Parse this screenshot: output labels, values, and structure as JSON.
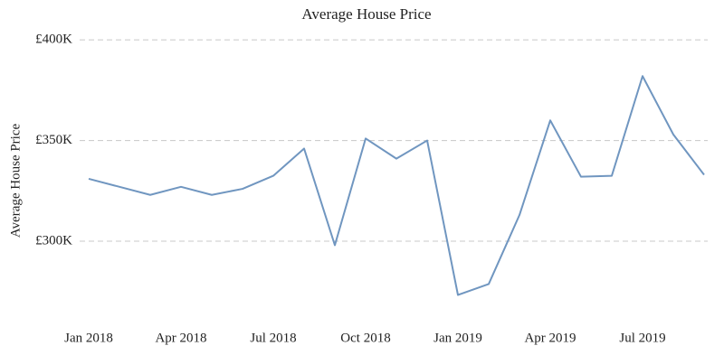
{
  "chart_data": {
    "type": "line",
    "title": "Average House Price",
    "y_label": "Average House Price",
    "x": [
      "2018-01",
      "2018-02",
      "2018-03",
      "2018-04",
      "2018-05",
      "2018-06",
      "2018-07",
      "2018-08",
      "2018-09",
      "2018-10",
      "2018-11",
      "2018-12",
      "2019-01",
      "2019-02",
      "2019-03",
      "2019-04",
      "2019-05",
      "2019-06",
      "2019-07",
      "2019-08",
      "2019-09"
    ],
    "xticks": [
      {
        "value": "2018-01",
        "label": "Jan 2018"
      },
      {
        "value": "2018-04",
        "label": "Apr 2018"
      },
      {
        "value": "2018-07",
        "label": "Jul 2018"
      },
      {
        "value": "2018-10",
        "label": "Oct 2018"
      },
      {
        "value": "2019-01",
        "label": "Jan 2019"
      },
      {
        "value": "2019-04",
        "label": "Apr 2019"
      },
      {
        "value": "2019-07",
        "label": "Jul 2019"
      }
    ],
    "series": [
      {
        "name": "Average House Price",
        "color": "#7096c0",
        "values": [
          331,
          327,
          323,
          327,
          323,
          326,
          332.5,
          346,
          298,
          351,
          341,
          350,
          273.3,
          278.7,
          313,
          360,
          332,
          332.5,
          382,
          353,
          333
        ]
      }
    ],
    "ylim": [
      265,
      405
    ],
    "yticks": [
      {
        "value": 300,
        "label": "£300K"
      },
      {
        "value": 350,
        "label": "£350K"
      },
      {
        "value": 400,
        "label": "£400K"
      }
    ],
    "grid": true
  }
}
